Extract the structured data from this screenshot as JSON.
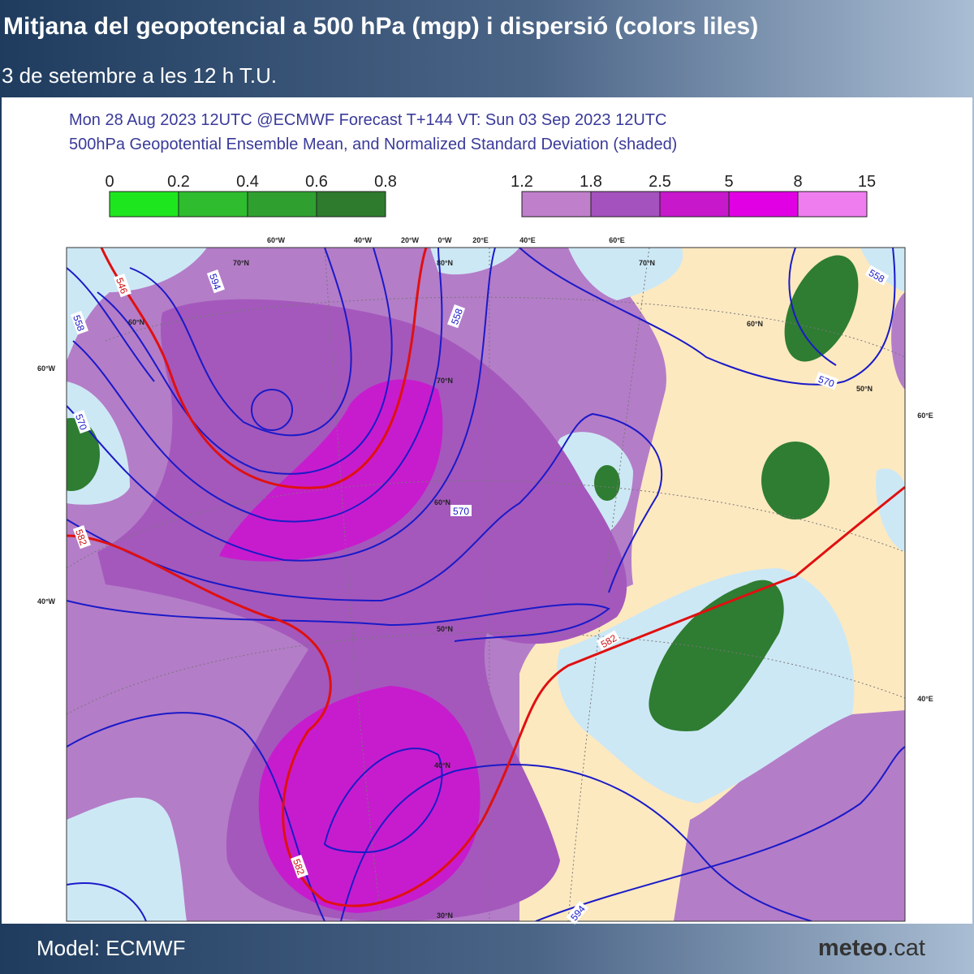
{
  "header": {
    "title": "Mitjana del geopotencial a 500 hPa (mgp) i dispersió (colors liles)",
    "subtitle": "3 de setembre a les 12 h T.U."
  },
  "map": {
    "title_lines": [
      "Mon 28 Aug 2023 12UTC @ECMWF Forecast T+144 VT: Sun 03 Sep 2023 12UTC",
      "500hPa Geopotential Ensemble Mean, and Normalized Standard Deviation (shaded)"
    ],
    "colorbars": [
      {
        "labels": [
          "0",
          "0.2",
          "0.4",
          "0.6",
          "0.8"
        ],
        "colors": [
          "#1ee61e",
          "#2fbc2f",
          "#2fa02f",
          "#2e7b2e"
        ]
      },
      {
        "labels": [
          "1.2",
          "1.8",
          "2.5",
          "5",
          "8",
          "15"
        ],
        "colors": [
          "#c07fcb",
          "#a452bd",
          "#c718cc",
          "#e100e3",
          "#f07df0"
        ]
      }
    ],
    "grid_labels": [
      "60°W",
      "40°W",
      "20°W",
      "0°W",
      "20°E",
      "40°E",
      "60°E",
      "60°W",
      "40°W",
      "60°E",
      "40°E",
      "70°N",
      "60°N",
      "80°N",
      "70°N",
      "60°N",
      "50°N",
      "40°N",
      "30°N",
      "70°N",
      "60°N",
      "50°N"
    ],
    "contour_labels": [
      "546",
      "594",
      "558",
      "570",
      "582",
      "558",
      "570",
      "582",
      "582",
      "594",
      "558",
      "570"
    ]
  },
  "footer": {
    "model": "Model: ECMWF",
    "brand_bold": "meteo",
    "brand_rest": ".cat"
  }
}
